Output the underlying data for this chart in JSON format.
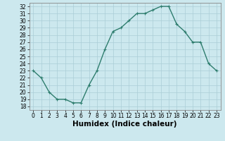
{
  "x": [
    0,
    1,
    2,
    3,
    4,
    5,
    6,
    7,
    8,
    9,
    10,
    11,
    12,
    13,
    14,
    15,
    16,
    17,
    18,
    19,
    20,
    21,
    22,
    23
  ],
  "y": [
    23,
    22,
    20,
    19,
    19,
    18.5,
    18.5,
    21,
    23,
    26,
    28.5,
    29,
    30,
    31,
    31,
    31.5,
    32,
    32,
    29.5,
    28.5,
    27,
    27,
    24,
    23
  ],
  "line_color": "#2e7d6e",
  "marker": "+",
  "marker_size": 3.5,
  "marker_color": "#2e7d6e",
  "bg_color": "#cce8ee",
  "grid_color": "#aacdd6",
  "xlabel": "Humidex (Indice chaleur)",
  "xlabel_fontsize": 7.5,
  "ylim": [
    17.5,
    32.5
  ],
  "xlim": [
    -0.5,
    23.5
  ],
  "yticks": [
    18,
    19,
    20,
    21,
    22,
    23,
    24,
    25,
    26,
    27,
    28,
    29,
    30,
    31,
    32
  ],
  "xticks": [
    0,
    1,
    2,
    3,
    4,
    5,
    6,
    7,
    8,
    9,
    10,
    11,
    12,
    13,
    14,
    15,
    16,
    17,
    18,
    19,
    20,
    21,
    22,
    23
  ],
  "tick_fontsize": 5.5,
  "line_width": 1.0
}
